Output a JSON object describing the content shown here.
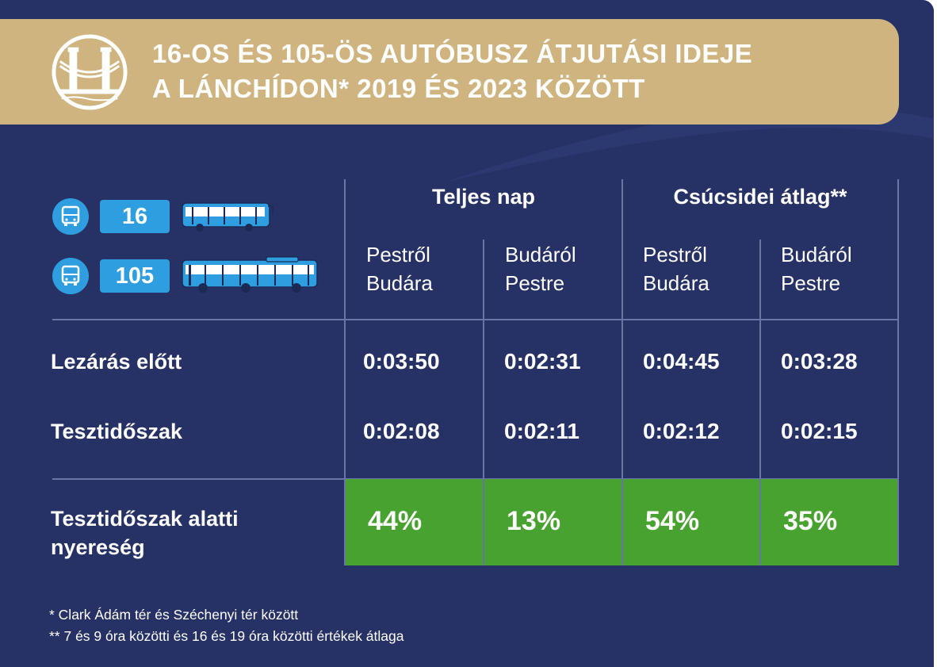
{
  "header": {
    "title_line1": "16-OS ÉS 105-ÖS AUTÓBUSZ ÁTJUTÁSI IDEJE",
    "title_line2": "A LÁNCHÍDON* 2019 ÉS 2023 KÖZÖTT",
    "logo_icon": "chain-bridge-icon"
  },
  "legend": {
    "routes": [
      {
        "number": "16",
        "icon": "bus-stop-icon",
        "vehicle": "bus-icon"
      },
      {
        "number": "105",
        "icon": "bus-stop-icon",
        "vehicle": "articulated-bus-icon"
      }
    ]
  },
  "colors": {
    "background": "#263165",
    "header": "#cfb480",
    "route_blue": "#2f9ee0",
    "gain_green": "#48a22f"
  },
  "chart_data": {
    "type": "table",
    "column_groups": [
      "Teljes nap",
      "Csúcsidei átlag**"
    ],
    "columns": [
      {
        "group": "Teljes nap",
        "line1": "Pestről",
        "line2": "Budára"
      },
      {
        "group": "Teljes nap",
        "line1": "Budáról",
        "line2": "Pestre"
      },
      {
        "group": "Csúcsidei átlag**",
        "line1": "Pestről",
        "line2": "Budára"
      },
      {
        "group": "Csúcsidei átlag**",
        "line1": "Budáról",
        "line2": "Pestre"
      }
    ],
    "rows": [
      {
        "label": "Lezárás előtt",
        "values": [
          "0:03:50",
          "0:02:31",
          "0:04:45",
          "0:03:28"
        ]
      },
      {
        "label": "Tesztidőszak",
        "values": [
          "0:02:08",
          "0:02:11",
          "0:02:12",
          "0:02:15"
        ]
      }
    ],
    "gain_row": {
      "label_line1": "Tesztidőszak alatti",
      "label_line2": "nyereség",
      "values": [
        "44%",
        "13%",
        "54%",
        "35%"
      ]
    }
  },
  "footnotes": [
    "* Clark Ádám tér és Széchenyi tér között",
    "** 7 és 9 óra közötti és 16 és 19 óra közötti értékek átlaga"
  ]
}
